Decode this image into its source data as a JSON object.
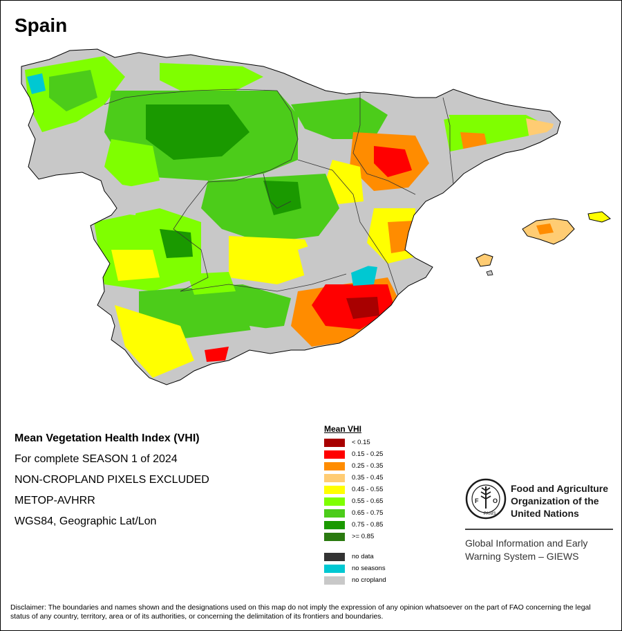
{
  "map": {
    "title": "Spain",
    "info_lines": [
      "Mean Vegetation Health Index (VHI)",
      "For complete SEASON 1 of 2024",
      "NON-CROPLAND PIXELS EXCLUDED",
      "METOP-AVHRR",
      "WGS84, Geographic Lat/Lon"
    ]
  },
  "legend": {
    "title": "Mean VHI",
    "classes": [
      {
        "label": "< 0.15",
        "color": "#a80000"
      },
      {
        "label": "0.15 - 0.25",
        "color": "#ff0000"
      },
      {
        "label": "0.25 - 0.35",
        "color": "#ff8c00"
      },
      {
        "label": "0.35 - 0.45",
        "color": "#ffcc73"
      },
      {
        "label": "0.45 - 0.55",
        "color": "#ffff00"
      },
      {
        "label": "0.55 - 0.65",
        "color": "#7fff00"
      },
      {
        "label": "0.65 - 0.75",
        "color": "#4ccc1a"
      },
      {
        "label": "0.75 - 0.85",
        "color": "#1a9900"
      },
      {
        "label": ">= 0.85",
        "color": "#2a7a10"
      }
    ],
    "special": [
      {
        "label": "no data",
        "color": "#333333"
      },
      {
        "label": "no seasons",
        "color": "#00c8d2"
      },
      {
        "label": "no cropland",
        "color": "#c8c8c8"
      }
    ]
  },
  "org": {
    "name_lines": [
      "Food and Agriculture",
      "Organization of the",
      "United Nations"
    ],
    "logo_text": "FAO",
    "logo_motto": "FIAT PANIS",
    "system_lines": [
      "Global Information and Early",
      "Warning System – GIEWS"
    ]
  },
  "disclaimer": "Disclaimer: The boundaries and names shown and the designations used on this map do not imply the expression of any opinion whatsoever on the part of FAO concerning the legal status of any country, territory, area or of its authorities, or concerning the delimitation of its frontiers and boundaries."
}
